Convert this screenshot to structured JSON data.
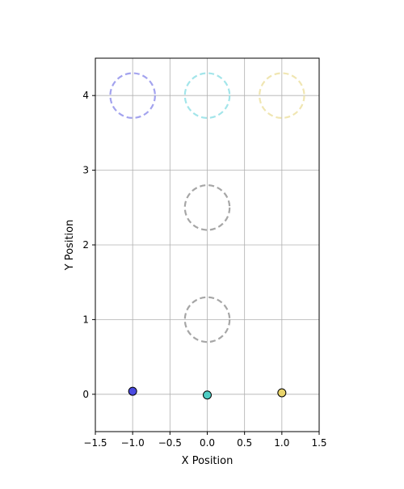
{
  "chart_data": {
    "type": "scatter",
    "title": "",
    "xlabel": "X Position",
    "ylabel": "Y Position",
    "xlim": [
      -1.5,
      1.5
    ],
    "ylim": [
      -0.5,
      4.5
    ],
    "grid": true,
    "x_ticks": [
      -1.5,
      -1.0,
      -0.5,
      0.0,
      0.5,
      1.0,
      1.5
    ],
    "x_tick_labels": [
      "−1.5",
      "−1.0",
      "−0.5",
      "0.0",
      "0.5",
      "1.0",
      "1.5"
    ],
    "y_ticks": [
      0,
      1,
      2,
      3,
      4
    ],
    "y_tick_labels": [
      "0",
      "1",
      "2",
      "3",
      "4"
    ],
    "points": [
      {
        "x": -1.0,
        "y": 0.04,
        "color": "#4a4ae0"
      },
      {
        "x": 0.0,
        "y": -0.01,
        "color": "#4ecdc4"
      },
      {
        "x": 1.0,
        "y": 0.02,
        "color": "#e8d36a"
      }
    ],
    "dashed_circles": [
      {
        "x": -1.0,
        "y": 4.0,
        "r": 0.3,
        "color": "#a3a3ee"
      },
      {
        "x": 0.0,
        "y": 4.0,
        "r": 0.3,
        "color": "#a3e5ea"
      },
      {
        "x": 1.0,
        "y": 4.0,
        "r": 0.3,
        "color": "#f0e6b2"
      },
      {
        "x": 0.0,
        "y": 2.5,
        "r": 0.3,
        "color": "#a6a6a6"
      },
      {
        "x": 0.0,
        "y": 1.0,
        "r": 0.3,
        "color": "#a6a6a6"
      }
    ]
  }
}
